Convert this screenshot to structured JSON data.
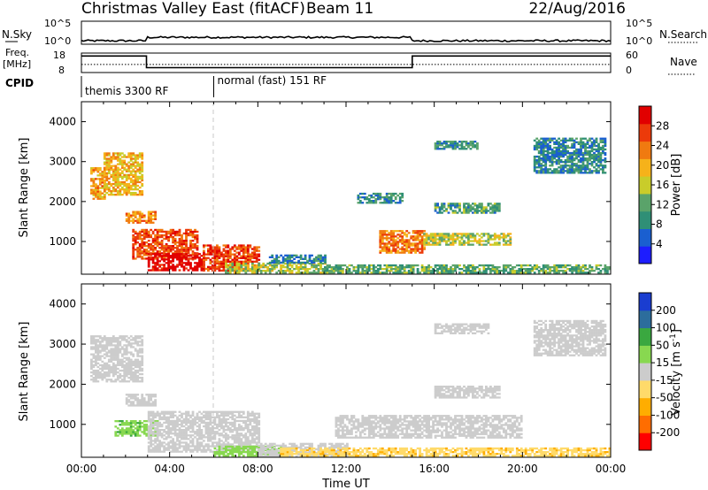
{
  "header": {
    "title": "Christmas Valley East (fitACF)",
    "beam": "Beam 11",
    "date": "22/Aug/2016"
  },
  "colors": {
    "power_scale": [
      "#1d1dff",
      "#1a5fd0",
      "#2f8f76",
      "#5aa36a",
      "#c9cc2a",
      "#f6b21a",
      "#f07a10",
      "#ec3a0a",
      "#e10000"
    ],
    "velocity_scale": [
      "#ff0000",
      "#ff6d00",
      "#ffad00",
      "#ffda6a",
      "#cccccc",
      "#88d850",
      "#3aa840",
      "#2c6d9c",
      "#1a3dd0"
    ],
    "curve": "#000000"
  },
  "chart_data": [
    {
      "type": "line",
      "name": "sky-noise-panel",
      "left_label": "N.Sky",
      "right_label": "N.Search",
      "left_ticks": [
        "10^5",
        "10^0"
      ],
      "right_ticks": [
        "10^5",
        "10^0"
      ],
      "x": [
        "00:00",
        "03:00",
        "15:00",
        "24:00"
      ],
      "n_sky_level": [
        0.15,
        0.3,
        0.15,
        0.2
      ]
    },
    {
      "type": "line",
      "name": "frequency-panel",
      "left_label": "Freq. [MHz]",
      "right_label": "Nave",
      "left_ticks": [
        "18",
        "8"
      ],
      "right_ticks": [
        "60",
        "0"
      ],
      "freq_mhz": [
        {
          "t": 0.0,
          "v": 16.5
        },
        {
          "t": 2.95,
          "v": 16.5
        },
        {
          "t": 2.95,
          "v": 10.5
        },
        {
          "t": 15.0,
          "v": 10.5
        },
        {
          "t": 15.0,
          "v": 16.5
        },
        {
          "t": 24.0,
          "v": 16.5
        }
      ],
      "nave": 25
    },
    {
      "type": "table",
      "name": "cpid-bar",
      "label": "CPID",
      "segments": [
        {
          "start": 0.0,
          "end": 6.0,
          "text": "themis 3300 RF"
        },
        {
          "start": 6.0,
          "end": 24.0,
          "text": "normal (fast) 151 RF"
        }
      ]
    },
    {
      "type": "heatmap",
      "name": "power-panel",
      "xlabel": "",
      "ylabel": "Slant Range [km]",
      "xlim": [
        0,
        24
      ],
      "ylim": [
        180,
        4500
      ],
      "yticks": [
        1000,
        2000,
        3000,
        4000
      ],
      "colorbar_label": "Power [dB]",
      "colorbar_ticks": [
        "4",
        "8",
        "12",
        "16",
        "20",
        "24",
        "28"
      ],
      "colorbar_range": [
        0,
        30
      ],
      "regions": [
        {
          "t0": 0.4,
          "t1": 1.0,
          "r0": 2050,
          "r1": 2850,
          "level": 20
        },
        {
          "t0": 1.0,
          "t1": 2.8,
          "r0": 2150,
          "r1": 3200,
          "level": 18
        },
        {
          "t0": 2.0,
          "t1": 3.4,
          "r0": 1450,
          "r1": 1750,
          "level": 21
        },
        {
          "t0": 2.3,
          "t1": 5.2,
          "r0": 550,
          "r1": 1300,
          "level": 24
        },
        {
          "t0": 3.0,
          "t1": 5.5,
          "r0": 260,
          "r1": 700,
          "level": 29
        },
        {
          "t0": 5.5,
          "t1": 8.0,
          "r0": 250,
          "r1": 900,
          "level": 25
        },
        {
          "t0": 6.5,
          "t1": 11.0,
          "r0": 200,
          "r1": 450,
          "level": 14
        },
        {
          "t0": 11.0,
          "t1": 24.0,
          "r0": 200,
          "r1": 420,
          "level": 11
        },
        {
          "t0": 13.5,
          "t1": 15.5,
          "r0": 700,
          "r1": 1250,
          "level": 22
        },
        {
          "t0": 15.5,
          "t1": 19.5,
          "r0": 900,
          "r1": 1200,
          "level": 15
        },
        {
          "t0": 16.0,
          "t1": 19.0,
          "r0": 1700,
          "r1": 1950,
          "level": 10
        },
        {
          "t0": 16.0,
          "t1": 18.0,
          "r0": 3300,
          "r1": 3500,
          "level": 9
        },
        {
          "t0": 20.5,
          "t1": 23.8,
          "r0": 2700,
          "r1": 3600,
          "level": 8
        },
        {
          "t0": 12.5,
          "t1": 14.5,
          "r0": 1950,
          "r1": 2200,
          "level": 8
        },
        {
          "t0": 8.5,
          "t1": 11.0,
          "r0": 450,
          "r1": 650,
          "level": 8
        }
      ]
    },
    {
      "type": "heatmap",
      "name": "velocity-panel",
      "xlabel": "Time UT",
      "ylabel": "Slant Range [km]",
      "xlim": [
        0,
        24
      ],
      "ylim": [
        180,
        4500
      ],
      "xticks": [
        "00:00",
        "04:00",
        "08:00",
        "12:00",
        "16:00",
        "20:00",
        "00:00"
      ],
      "yticks": [
        1000,
        2000,
        3000,
        4000
      ],
      "colorbar_label": "Velocity [m s^-1]",
      "colorbar_ticks": [
        "-200",
        "-100",
        "-50",
        "-15",
        "15",
        "50",
        "100",
        "200"
      ],
      "regions": [
        {
          "t0": 0.4,
          "t1": 2.8,
          "r0": 2050,
          "r1": 3200,
          "level": 0
        },
        {
          "t0": 2.0,
          "t1": 3.4,
          "r0": 1450,
          "r1": 1750,
          "level": 0
        },
        {
          "t0": 1.5,
          "t1": 3.5,
          "r0": 700,
          "r1": 1100,
          "level": 40
        },
        {
          "t0": 3.0,
          "t1": 8.0,
          "r0": 300,
          "r1": 1300,
          "level": 0
        },
        {
          "t0": 6.0,
          "t1": 9.0,
          "r0": 200,
          "r1": 450,
          "level": 30
        },
        {
          "t0": 8.0,
          "t1": 12.0,
          "r0": 180,
          "r1": 500,
          "level": 0
        },
        {
          "t0": 9.0,
          "t1": 24.0,
          "r0": 200,
          "r1": 420,
          "level": -40
        },
        {
          "t0": 11.5,
          "t1": 20.0,
          "r0": 650,
          "r1": 1200,
          "level": 0
        },
        {
          "t0": 16.0,
          "t1": 19.0,
          "r0": 1650,
          "r1": 1950,
          "level": 0
        },
        {
          "t0": 16.0,
          "t1": 18.5,
          "r0": 3250,
          "r1": 3500,
          "level": 0
        },
        {
          "t0": 20.5,
          "t1": 23.8,
          "r0": 2700,
          "r1": 3600,
          "level": 0
        }
      ]
    }
  ]
}
